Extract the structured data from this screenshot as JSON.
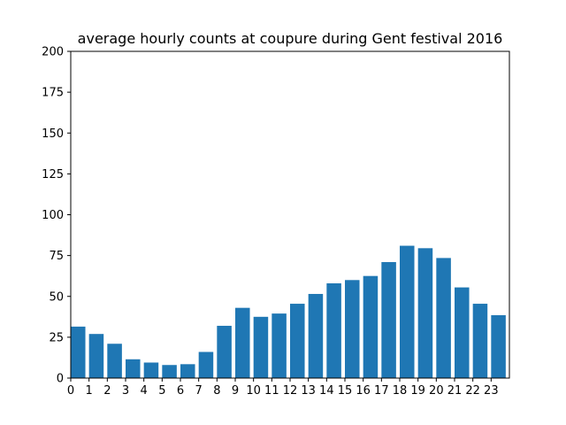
{
  "chart_data": {
    "type": "bar",
    "title": "average hourly counts at coupure during Gent festival 2016",
    "xlabel": "",
    "ylabel": "",
    "categories": [
      "0",
      "1",
      "2",
      "3",
      "4",
      "5",
      "6",
      "7",
      "8",
      "9",
      "10",
      "11",
      "12",
      "13",
      "14",
      "15",
      "16",
      "17",
      "18",
      "19",
      "20",
      "21",
      "22",
      "23"
    ],
    "values": [
      31.5,
      27,
      21,
      11.5,
      9.5,
      8,
      8.5,
      16,
      32,
      43,
      37.5,
      39.5,
      45.5,
      51.5,
      58,
      60,
      62.5,
      71,
      81,
      79.5,
      73.5,
      55.5,
      45.5,
      38.5
    ],
    "ylim": [
      0,
      200
    ],
    "yticks": [
      0,
      25,
      50,
      75,
      100,
      125,
      150,
      175,
      200
    ],
    "grid": false,
    "bar_color": "#1f77b4"
  }
}
